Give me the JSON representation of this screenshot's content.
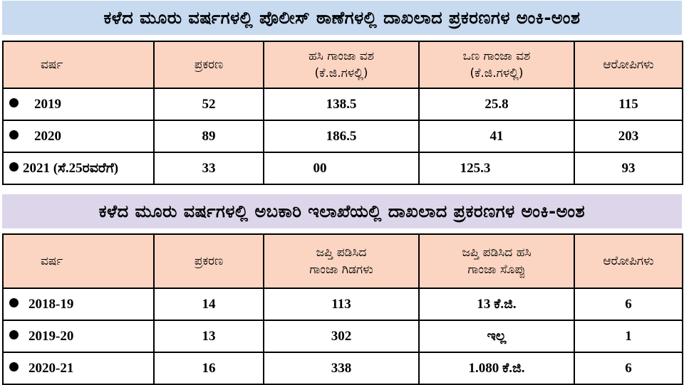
{
  "police": {
    "title": "ಕಳೆದ ಮೂರು ವರ್ಷಗಳಲ್ಲಿ ಪೊಲೀಸ್ ಠಾಣೆಗಳಲ್ಲಿ ದಾಖಲಾದ ಪ್ರಕರಣಗಳ ಅಂಕಿ-ಅಂಶ",
    "headers": {
      "year": "ವರ್ಷ",
      "cases": "ಪ್ರಕರಣ",
      "wet_line1": "ಹಸಿ ಗಾಂಜಾ ವಶ",
      "wet_line2": "(ಕೆ.ಜಿ.ಗಳಲ್ಲಿ)",
      "dry_line1": "ಒಣ ಗಾಂಜಾ ವಶ",
      "dry_line2": "(ಕೆ.ಜಿ.ಗಳಲ್ಲಿ)",
      "accused": "ಆರೋಪಿಗಳು"
    },
    "rows": [
      {
        "year": "2019",
        "cases": "52",
        "wet": "138.5",
        "dry": "25.8",
        "accused": "115"
      },
      {
        "year": "2020",
        "cases": "89",
        "wet": "186.5",
        "dry": "41",
        "accused": "203"
      },
      {
        "year": "2021 (ಸೆ.25ರವರೆಗೆ)",
        "cases": "33",
        "wet": "00",
        "dry": "125.3",
        "accused": "93"
      }
    ]
  },
  "excise": {
    "title": "ಕಳೆದ ಮೂರು ವರ್ಷಗಳಲ್ಲಿ ಅಬಕಾರಿ ಇಲಾಖೆಯಲ್ಲಿ ದಾಖಲಾದ ಪ್ರಕರಣಗಳ ಅಂಕಿ-ಅಂಶ",
    "headers": {
      "year": "ವರ್ಷ",
      "cases": "ಪ್ರಕರಣ",
      "plants_line1": "ಜಪ್ತಿ ಪಡಿಸಿದ",
      "plants_line2": "ಗಾಂಜಾ ಗಿಡಗಳು",
      "leaf_line1": "ಜಪ್ತಿ ಪಡಿಸಿದ ಹಸಿ",
      "leaf_line2": "ಗಾಂಜಾ ಸೊಪ್ಪು",
      "accused": "ಆರೋಪಿಗಳು"
    },
    "rows": [
      {
        "year": "2018-19",
        "cases": "14",
        "plants": "113",
        "leaf": "13 ಕೆ.ಜಿ.",
        "accused": "6"
      },
      {
        "year": "2019-20",
        "cases": "13",
        "plants": "302",
        "leaf": "ಇಲ್ಲ",
        "accused": "1"
      },
      {
        "year": "2020-21",
        "cases": "16",
        "plants": "338",
        "leaf": "1.080 ಕೆ.ಜಿ.",
        "accused": "6"
      }
    ]
  }
}
